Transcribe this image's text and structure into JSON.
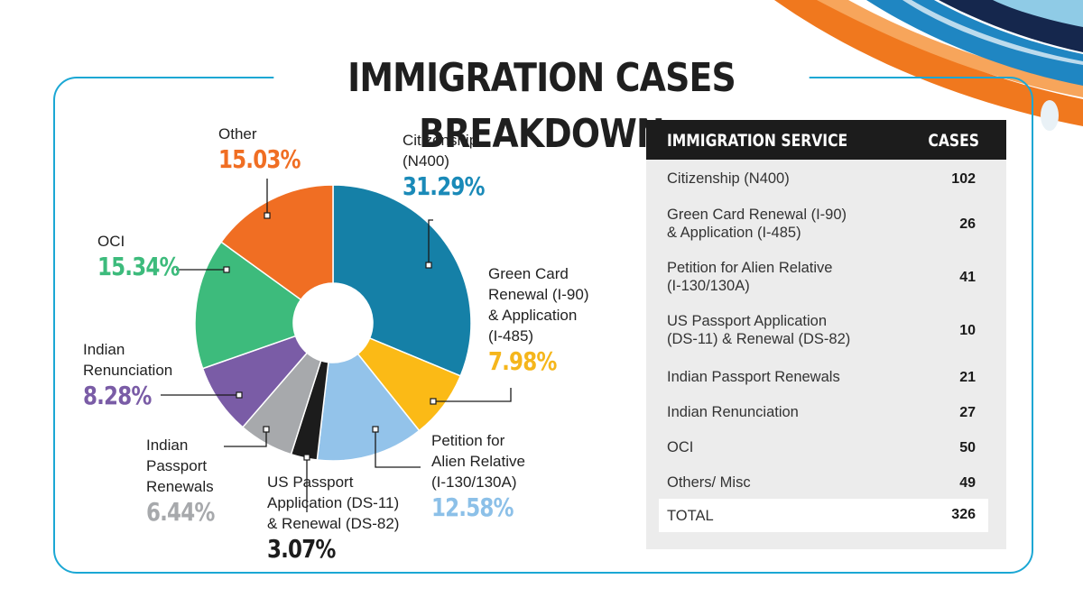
{
  "title": "IMMIGRATION CASES BREAKDOWN",
  "colors": {
    "frame": "#1ba7d4",
    "deco_orange": "#f0781e",
    "deco_blue": "#1f86c2",
    "deco_navy": "#15274d"
  },
  "chart_data": {
    "type": "pie",
    "donut": true,
    "title": "IMMIGRATION CASES BREAKDOWN",
    "slices": [
      {
        "label": "Citizenship (N400)",
        "label_lines": [
          "Citizenship",
          "(N400)"
        ],
        "pct_text": "31.29%",
        "value": 31.29,
        "color": "#1580a7",
        "pct_color": "#1a8ab8"
      },
      {
        "label": "Green Card Renewal (I-90) & Application (I-485)",
        "label_lines": [
          "Green Card",
          "Renewal (I-90)",
          "& Application",
          "(I-485)"
        ],
        "pct_text": "7.98%",
        "value": 7.98,
        "color": "#fbba16",
        "pct_color": "#f5b61c"
      },
      {
        "label": "Petition for Alien Relative (I-130/130A)",
        "label_lines": [
          "Petition for",
          "Alien Relative",
          "(I-130/130A)"
        ],
        "pct_text": "12.58%",
        "value": 12.58,
        "color": "#93c3ea",
        "pct_color": "#8cc0e8"
      },
      {
        "label": "US Passport Application (DS-11) & Renewal (DS-82)",
        "label_lines": [
          "US Passport",
          "Application (DS-11)",
          "& Renewal (DS-82)"
        ],
        "pct_text": "3.07%",
        "value": 3.07,
        "color": "#1c1c1c",
        "pct_color": "#1c1c1c"
      },
      {
        "label": "Indian Passport Renewals",
        "label_lines": [
          "Indian",
          "Passport",
          "Renewals"
        ],
        "pct_text": "6.44%",
        "value": 6.44,
        "color": "#a7a9ac",
        "pct_color": "#a7a9ac"
      },
      {
        "label": "Indian Renunciation",
        "label_lines": [
          "Indian",
          "Renunciation"
        ],
        "pct_text": "8.28%",
        "value": 8.28,
        "color": "#7a5ca6",
        "pct_color": "#7a5ca6"
      },
      {
        "label": "OCI",
        "label_lines": [
          "OCI"
        ],
        "pct_text": "15.34%",
        "value": 15.34,
        "color": "#3dbb7c",
        "pct_color": "#3dbb7c"
      },
      {
        "label": "Other",
        "label_lines": [
          "Other"
        ],
        "pct_text": "15.03%",
        "value": 15.03,
        "color": "#f06e23",
        "pct_color": "#f06e23"
      }
    ]
  },
  "table": {
    "header": {
      "service": "IMMIGRATION SERVICE",
      "cases": "CASES"
    },
    "rows": [
      {
        "service_lines": [
          "Citizenship (N400)"
        ],
        "cases": "102"
      },
      {
        "service_lines": [
          "Green Card Renewal (I-90)",
          "& Application (I-485)"
        ],
        "cases": "26"
      },
      {
        "service_lines": [
          "Petition for Alien Relative",
          "(I-130/130A)"
        ],
        "cases": "41"
      },
      {
        "service_lines": [
          "US Passport Application",
          "(DS-11) & Renewal (DS-82)"
        ],
        "cases": "10"
      },
      {
        "service_lines": [
          "Indian Passport Renewals"
        ],
        "cases": "21"
      },
      {
        "service_lines": [
          "Indian Renunciation"
        ],
        "cases": "27"
      },
      {
        "service_lines": [
          "OCI"
        ],
        "cases": "50"
      },
      {
        "service_lines": [
          "Others/ Misc"
        ],
        "cases": "49"
      }
    ],
    "total": {
      "label": "TOTAL",
      "cases": "326"
    }
  }
}
